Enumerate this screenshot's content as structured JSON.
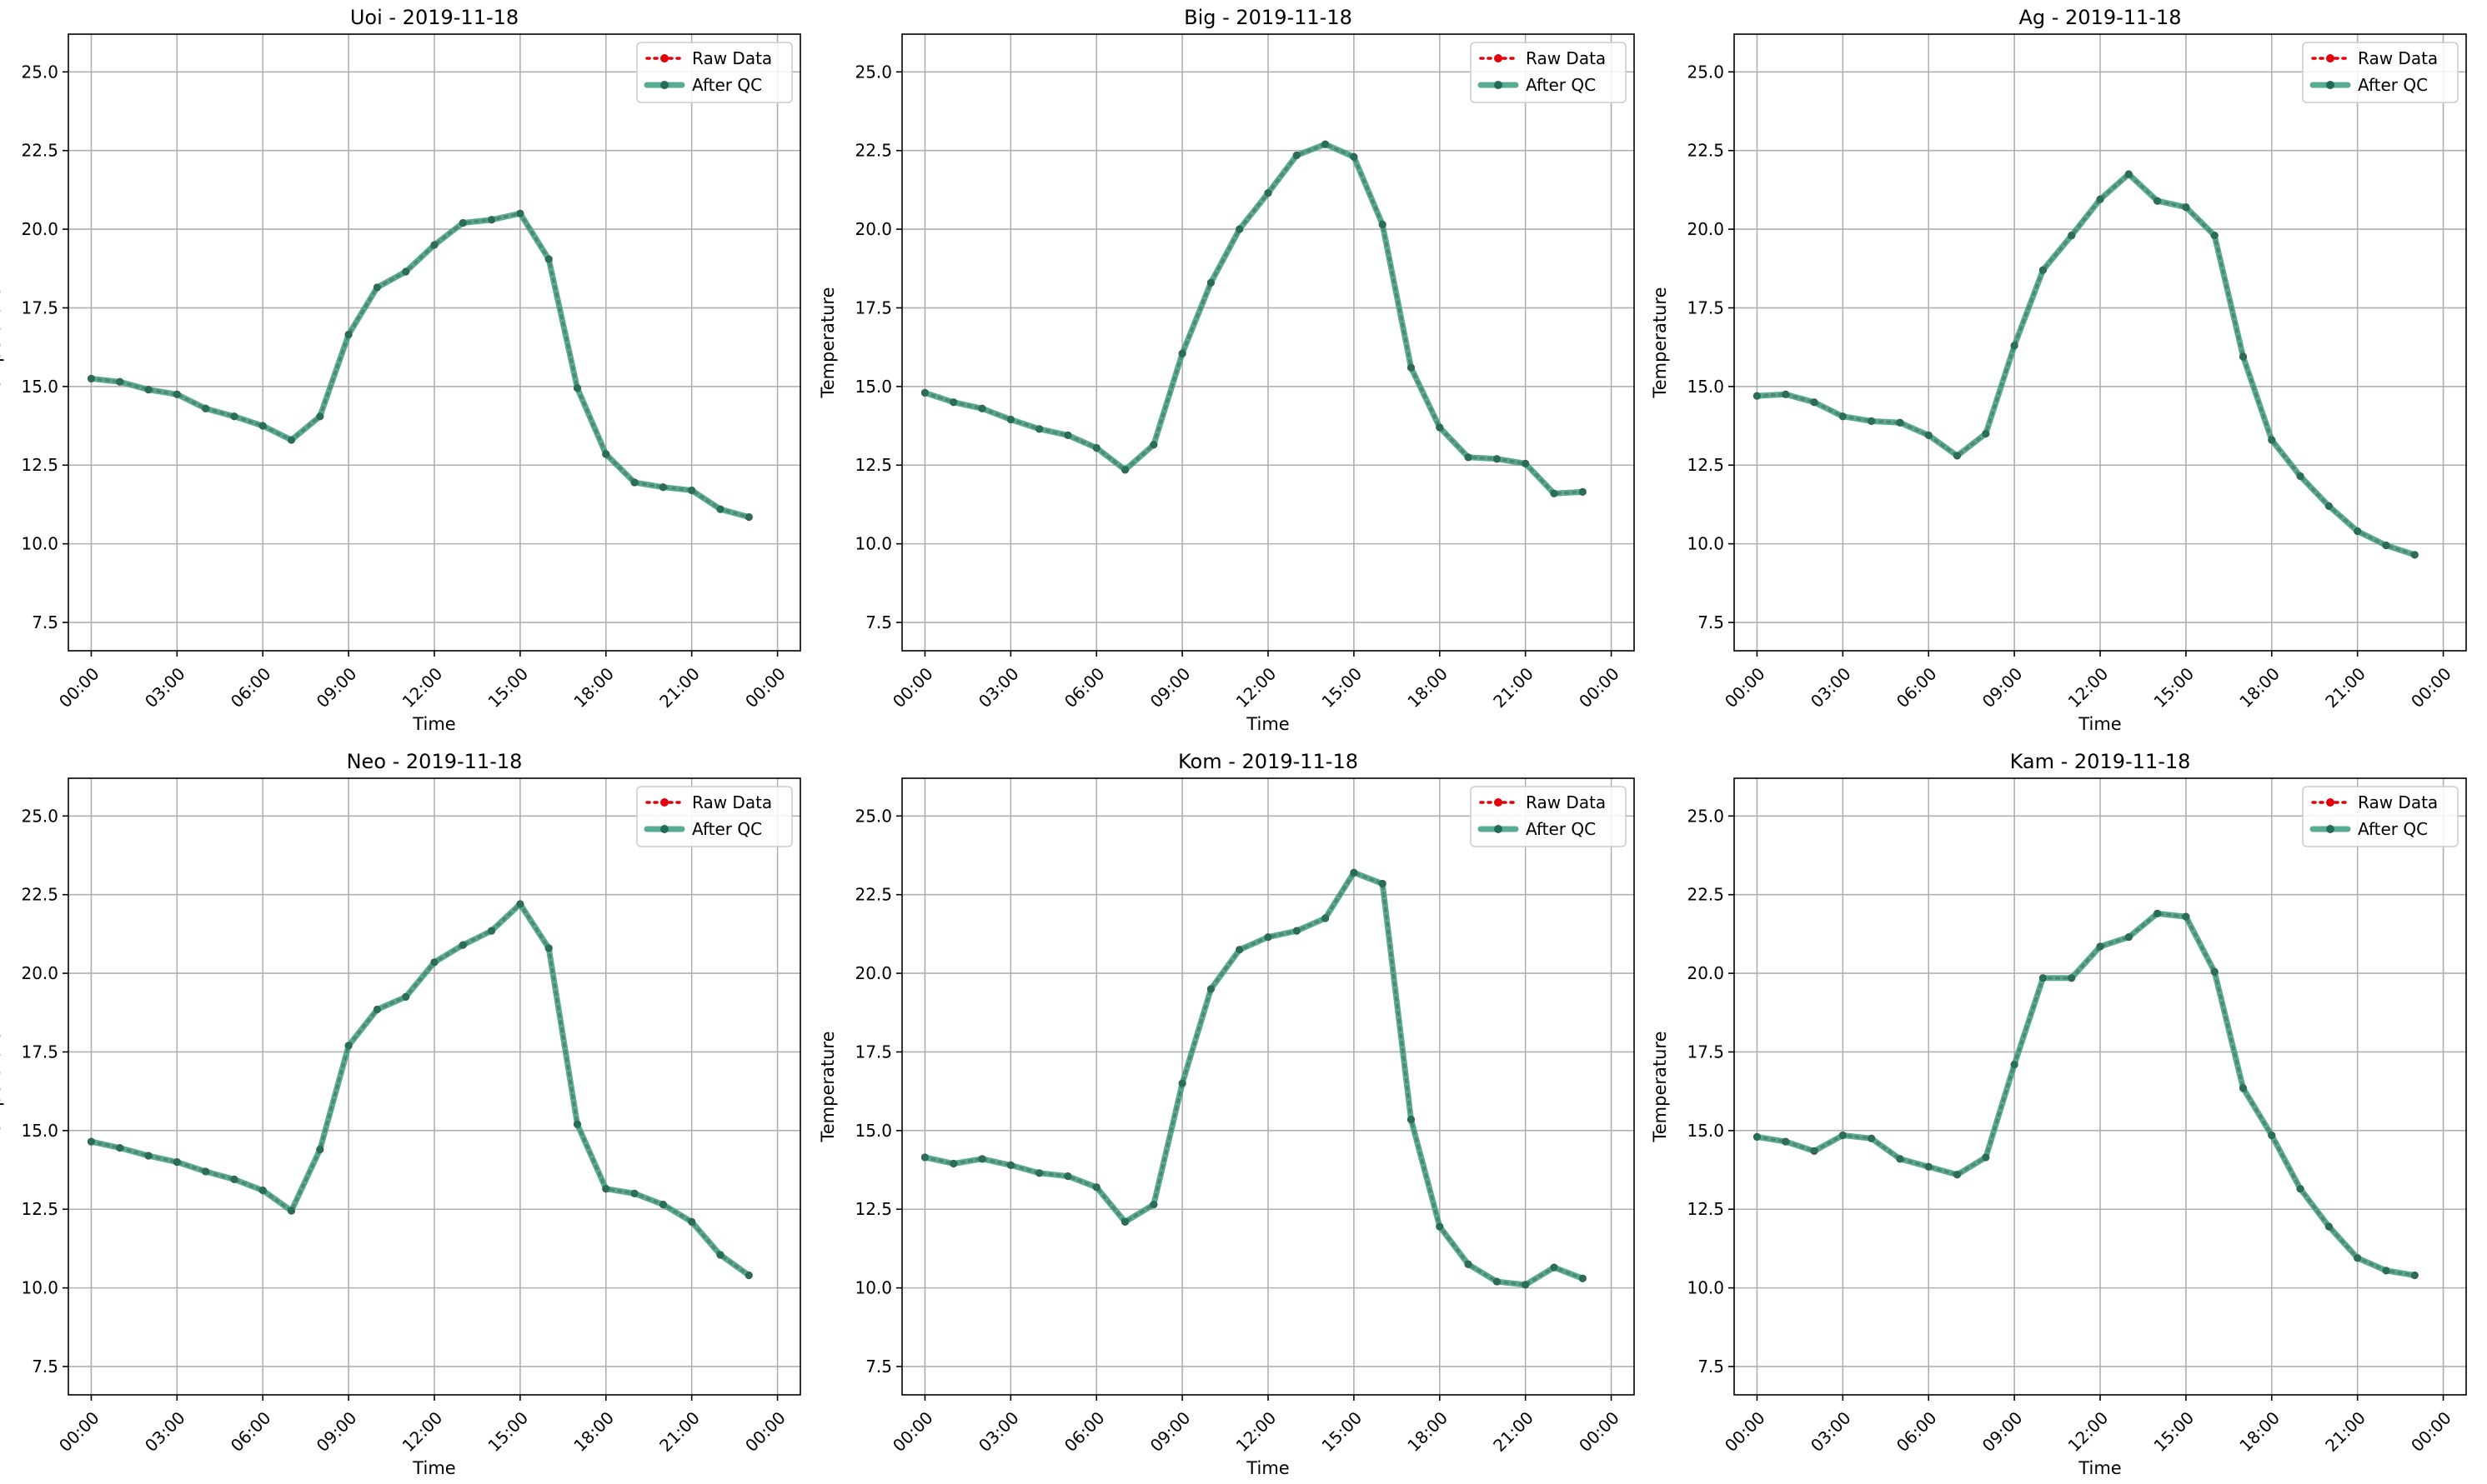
{
  "chart_data": [
    {
      "type": "line",
      "title": "Uoi - 2019-11-18",
      "xlabel": "Time",
      "ylabel": "Temperature",
      "ylim": [
        6.6,
        26.2
      ],
      "yticks": [
        "7.5",
        "10.0",
        "12.5",
        "15.0",
        "17.5",
        "20.0",
        "22.5",
        "25.0"
      ],
      "xticks": [
        "00:00",
        "03:00",
        "06:00",
        "09:00",
        "12:00",
        "15:00",
        "18:00",
        "21:00",
        "00:00"
      ],
      "legend": "top-right",
      "grid": true,
      "series": [
        {
          "name": "Raw Data",
          "values": [
            15.25,
            15.15,
            14.9,
            14.75,
            14.3,
            14.05,
            13.75,
            13.3,
            14.05,
            16.65,
            18.15,
            18.65,
            19.5,
            20.2,
            20.3,
            20.5,
            19.05,
            14.95,
            12.85,
            11.95,
            11.8,
            11.7,
            11.1,
            10.85
          ]
        },
        {
          "name": "After QC",
          "values": [
            15.25,
            15.15,
            14.9,
            14.75,
            14.3,
            14.05,
            13.75,
            13.3,
            14.05,
            16.65,
            18.15,
            18.65,
            19.5,
            20.2,
            20.3,
            20.5,
            19.05,
            14.95,
            12.85,
            11.95,
            11.8,
            11.7,
            11.1,
            10.85
          ]
        }
      ]
    },
    {
      "type": "line",
      "title": "Big - 2019-11-18",
      "xlabel": "Time",
      "ylabel": "Temperature",
      "ylim": [
        6.6,
        26.2
      ],
      "yticks": [
        "7.5",
        "10.0",
        "12.5",
        "15.0",
        "17.5",
        "20.0",
        "22.5",
        "25.0"
      ],
      "xticks": [
        "00:00",
        "03:00",
        "06:00",
        "09:00",
        "12:00",
        "15:00",
        "18:00",
        "21:00",
        "00:00"
      ],
      "legend": "top-right",
      "grid": true,
      "series": [
        {
          "name": "Raw Data",
          "values": [
            14.8,
            14.5,
            14.3,
            13.95,
            13.65,
            13.45,
            13.05,
            12.35,
            13.15,
            16.05,
            18.3,
            20.0,
            21.15,
            22.35,
            22.7,
            22.3,
            20.15,
            15.6,
            13.7,
            12.75,
            12.7,
            12.55,
            11.6,
            11.65
          ]
        },
        {
          "name": "After QC",
          "values": [
            14.8,
            14.5,
            14.3,
            13.95,
            13.65,
            13.45,
            13.05,
            12.35,
            13.15,
            16.05,
            18.3,
            20.0,
            21.15,
            22.35,
            22.7,
            22.3,
            20.15,
            15.6,
            13.7,
            12.75,
            12.7,
            12.55,
            11.6,
            11.65
          ]
        }
      ]
    },
    {
      "type": "line",
      "title": "Ag - 2019-11-18",
      "xlabel": "Time",
      "ylabel": "Temperature",
      "ylim": [
        6.6,
        26.2
      ],
      "yticks": [
        "7.5",
        "10.0",
        "12.5",
        "15.0",
        "17.5",
        "20.0",
        "22.5",
        "25.0"
      ],
      "xticks": [
        "00:00",
        "03:00",
        "06:00",
        "09:00",
        "12:00",
        "15:00",
        "18:00",
        "21:00",
        "00:00"
      ],
      "legend": "top-right",
      "grid": true,
      "series": [
        {
          "name": "Raw Data",
          "values": [
            14.7,
            14.75,
            14.5,
            14.05,
            13.9,
            13.85,
            13.45,
            12.8,
            13.5,
            16.3,
            18.7,
            19.8,
            20.95,
            21.75,
            20.9,
            20.7,
            19.8,
            15.95,
            13.3,
            12.15,
            11.2,
            10.4,
            9.95,
            9.65
          ]
        },
        {
          "name": "After QC",
          "values": [
            14.7,
            14.75,
            14.5,
            14.05,
            13.9,
            13.85,
            13.45,
            12.8,
            13.5,
            16.3,
            18.7,
            19.8,
            20.95,
            21.75,
            20.9,
            20.7,
            19.8,
            15.95,
            13.3,
            12.15,
            11.2,
            10.4,
            9.95,
            9.65
          ]
        }
      ]
    },
    {
      "type": "line",
      "title": "Neo - 2019-11-18",
      "xlabel": "Time",
      "ylabel": "Temperature",
      "ylim": [
        6.6,
        26.2
      ],
      "yticks": [
        "7.5",
        "10.0",
        "12.5",
        "15.0",
        "17.5",
        "20.0",
        "22.5",
        "25.0"
      ],
      "xticks": [
        "00:00",
        "03:00",
        "06:00",
        "09:00",
        "12:00",
        "15:00",
        "18:00",
        "21:00",
        "00:00"
      ],
      "legend": "top-right",
      "grid": true,
      "series": [
        {
          "name": "Raw Data",
          "values": [
            14.65,
            14.45,
            14.2,
            14.0,
            13.7,
            13.45,
            13.1,
            12.45,
            14.4,
            17.7,
            18.85,
            19.25,
            20.35,
            20.9,
            21.35,
            22.2,
            20.8,
            15.2,
            13.15,
            13.0,
            12.65,
            12.1,
            11.05,
            10.4
          ]
        },
        {
          "name": "After QC",
          "values": [
            14.65,
            14.45,
            14.2,
            14.0,
            13.7,
            13.45,
            13.1,
            12.45,
            14.4,
            17.7,
            18.85,
            19.25,
            20.35,
            20.9,
            21.35,
            22.2,
            20.8,
            15.2,
            13.15,
            13.0,
            12.65,
            12.1,
            11.05,
            10.4
          ]
        }
      ]
    },
    {
      "type": "line",
      "title": "Kom - 2019-11-18",
      "xlabel": "Time",
      "ylabel": "Temperature",
      "ylim": [
        6.6,
        26.2
      ],
      "yticks": [
        "7.5",
        "10.0",
        "12.5",
        "15.0",
        "17.5",
        "20.0",
        "22.5",
        "25.0"
      ],
      "xticks": [
        "00:00",
        "03:00",
        "06:00",
        "09:00",
        "12:00",
        "15:00",
        "18:00",
        "21:00",
        "00:00"
      ],
      "legend": "top-right",
      "grid": true,
      "series": [
        {
          "name": "Raw Data",
          "values": [
            14.15,
            13.95,
            14.1,
            13.9,
            13.65,
            13.55,
            13.2,
            12.1,
            12.65,
            16.5,
            19.5,
            20.75,
            21.15,
            21.35,
            21.75,
            23.2,
            22.85,
            15.35,
            11.95,
            10.75,
            10.2,
            10.1,
            10.65,
            10.3
          ]
        },
        {
          "name": "After QC",
          "values": [
            14.15,
            13.95,
            14.1,
            13.9,
            13.65,
            13.55,
            13.2,
            12.1,
            12.65,
            16.5,
            19.5,
            20.75,
            21.15,
            21.35,
            21.75,
            23.2,
            22.85,
            15.35,
            11.95,
            10.75,
            10.2,
            10.1,
            10.65,
            10.3
          ]
        }
      ]
    },
    {
      "type": "line",
      "title": "Kam - 2019-11-18",
      "xlabel": "Time",
      "ylabel": "Temperature",
      "ylim": [
        6.6,
        26.2
      ],
      "yticks": [
        "7.5",
        "10.0",
        "12.5",
        "15.0",
        "17.5",
        "20.0",
        "22.5",
        "25.0"
      ],
      "xticks": [
        "00:00",
        "03:00",
        "06:00",
        "09:00",
        "12:00",
        "15:00",
        "18:00",
        "21:00",
        "00:00"
      ],
      "legend": "top-right",
      "grid": true,
      "series": [
        {
          "name": "Raw Data",
          "values": [
            14.8,
            14.65,
            14.35,
            14.85,
            14.75,
            14.1,
            13.85,
            13.6,
            14.15,
            17.1,
            19.85,
            19.85,
            20.85,
            21.15,
            21.9,
            21.8,
            20.05,
            16.35,
            14.85,
            13.15,
            11.95,
            10.95,
            10.55,
            10.4
          ]
        },
        {
          "name": "After QC",
          "values": [
            14.8,
            14.65,
            14.35,
            14.85,
            14.75,
            14.1,
            13.85,
            13.6,
            14.15,
            17.1,
            19.85,
            19.85,
            20.85,
            21.15,
            21.9,
            21.8,
            20.05,
            16.35,
            14.85,
            13.15,
            11.95,
            10.95,
            10.55,
            10.4
          ]
        }
      ]
    }
  ],
  "colors": {
    "raw": "#e3000b",
    "qc": "#3a9e80",
    "qc_marker": "#236b58",
    "grid": "#b0b0b0",
    "axis": "#000000"
  }
}
